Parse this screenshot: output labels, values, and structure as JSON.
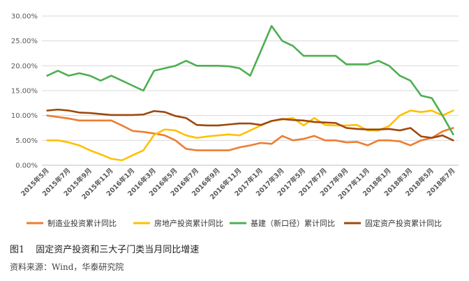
{
  "chart_data": {
    "type": "line",
    "title": "",
    "xlabel": "",
    "ylabel": "",
    "ylim": [
      0,
      30
    ],
    "y_ticks": [
      "0.00%",
      "5.00%",
      "10.00%",
      "15.00%",
      "20.00%",
      "25.00%",
      "30.00%"
    ],
    "x_tick_labels": [
      "2015年5月",
      "2015年7月",
      "2015年9月",
      "2015年11月",
      "2016年1月",
      "2016年3月",
      "2016年5月",
      "2016年7月",
      "2016年9月",
      "2016年11月",
      "2017年1月",
      "2017年3月",
      "2017年5月",
      "2017年7月",
      "2017年9月",
      "2017年11月",
      "2018年1月",
      "2018年3月",
      "2018年5月",
      "2018年7月"
    ],
    "x": [
      "2015-05",
      "2015-06",
      "2015-07",
      "2015-08",
      "2015-09",
      "2015-10",
      "2015-11",
      "2015-12",
      "2016-01",
      "2016-02",
      "2016-03",
      "2016-04",
      "2016-05",
      "2016-06",
      "2016-07",
      "2016-08",
      "2016-09",
      "2016-10",
      "2016-11",
      "2016-12",
      "2017-01",
      "2017-02",
      "2017-03",
      "2017-04",
      "2017-05",
      "2017-06",
      "2017-07",
      "2017-08",
      "2017-09",
      "2017-10",
      "2017-11",
      "2017-12",
      "2018-01",
      "2018-02",
      "2018-03",
      "2018-04",
      "2018-05",
      "2018-06",
      "2018-07"
    ],
    "grid": "horizontal",
    "legend_position": "bottom",
    "series": [
      {
        "name": "制造业投资累计同比",
        "color": "#ED7D31",
        "values": [
          10.0,
          9.7,
          9.4,
          9.0,
          9.0,
          9.0,
          9.0,
          8.0,
          6.9,
          6.7,
          6.4,
          6.0,
          5.0,
          3.3,
          3.0,
          3.0,
          3.0,
          3.0,
          3.6,
          4.0,
          4.5,
          4.3,
          5.9,
          5.0,
          5.3,
          5.9,
          5.0,
          5.0,
          4.6,
          4.7,
          4.0,
          5.0,
          5.0,
          4.8,
          4.0,
          5.0,
          5.5,
          6.8,
          7.5
        ]
      },
      {
        "name": "房地产投资累计同比",
        "color": "#FFC000",
        "values": [
          5.0,
          5.0,
          4.6,
          4.0,
          3.0,
          2.2,
          1.3,
          1.0,
          2.0,
          3.0,
          6.1,
          7.2,
          7.0,
          6.0,
          5.5,
          5.8,
          6.0,
          6.2,
          6.0,
          7.0,
          8.0,
          8.9,
          9.2,
          9.5,
          8.0,
          9.5,
          8.1,
          8.0,
          8.0,
          8.1,
          7.0,
          7.0,
          7.9,
          10.0,
          11.0,
          10.7,
          11.0,
          10.0,
          11.0
        ]
      },
      {
        "name": "基建（新口径）累计同比",
        "color": "#4CAF50",
        "values": [
          18.0,
          19.0,
          18.0,
          18.5,
          18.0,
          17.0,
          18.0,
          17.0,
          16.0,
          15.0,
          19.0,
          19.5,
          20.0,
          21.0,
          20.0,
          20.0,
          20.0,
          19.9,
          19.5,
          18.0,
          23.0,
          28.0,
          25.0,
          24.0,
          22.0,
          22.0,
          22.0,
          22.0,
          20.3,
          20.3,
          20.3,
          21.0,
          20.0,
          18.0,
          17.0,
          14.0,
          13.5,
          10.0,
          6.2
        ]
      },
      {
        "name": "固定资产投资累计同比",
        "color": "#9E480E",
        "values": [
          11.0,
          11.2,
          11.0,
          10.6,
          10.5,
          10.3,
          10.1,
          10.1,
          10.1,
          10.2,
          10.9,
          10.7,
          9.9,
          9.5,
          8.1,
          8.0,
          8.0,
          8.2,
          8.4,
          8.4,
          8.1,
          8.9,
          9.3,
          9.1,
          9.0,
          8.7,
          8.6,
          8.5,
          7.5,
          7.3,
          7.2,
          7.2,
          7.3,
          7.0,
          7.5,
          5.8,
          5.5,
          6.0,
          5.0
        ]
      }
    ]
  },
  "caption": {
    "figure_number": "图1",
    "figure_title": "固定资产投资和三大子门类当月同比增速"
  },
  "source": "资料来源：Wind，华泰研究院"
}
